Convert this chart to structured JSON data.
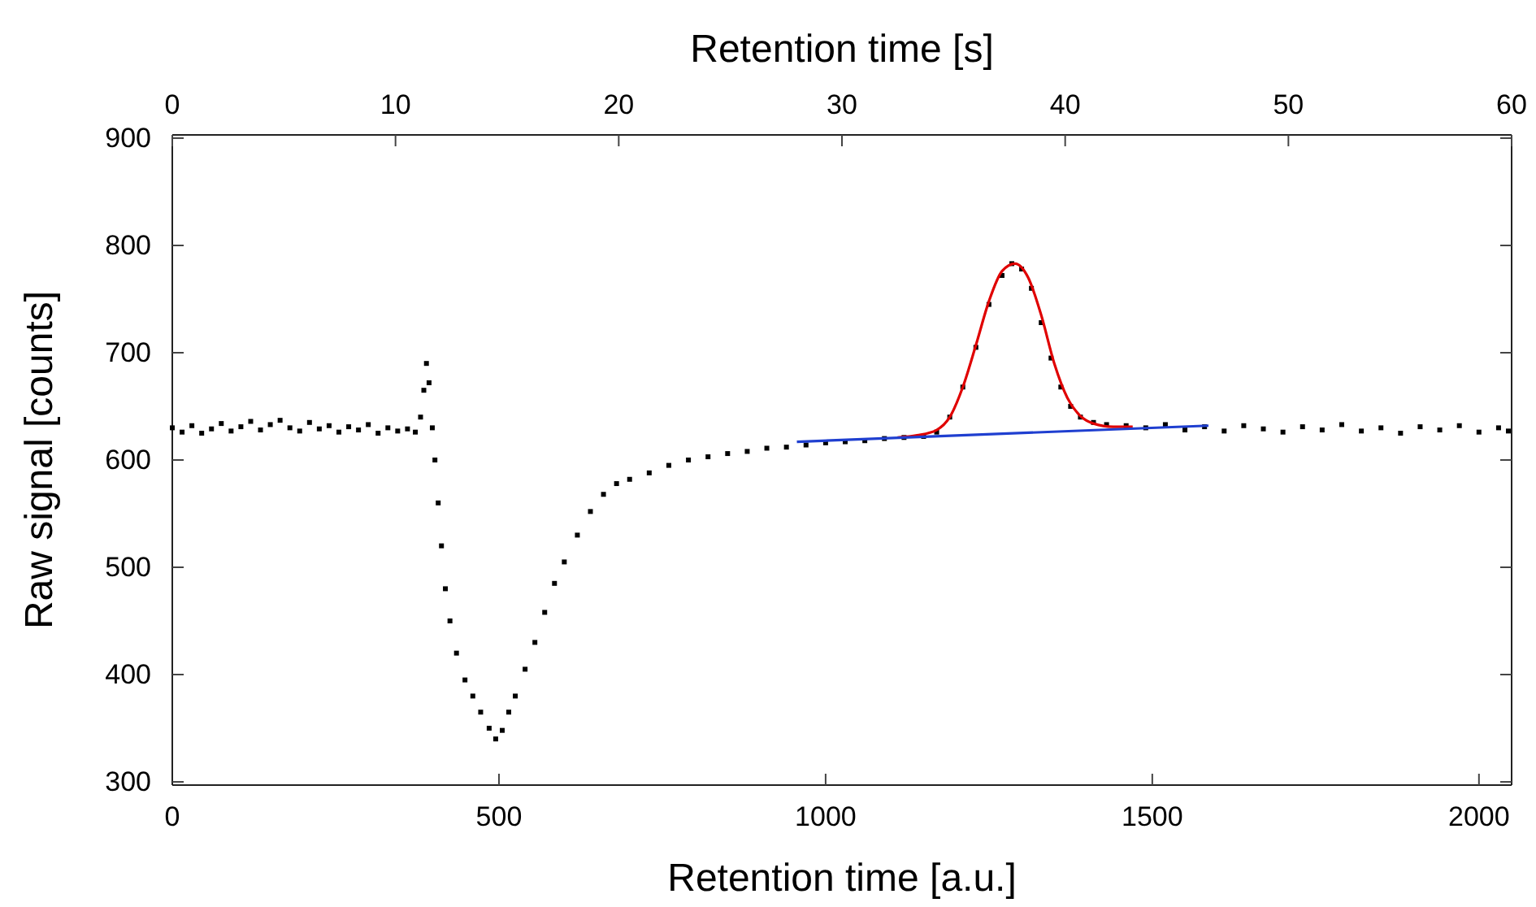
{
  "chart_data": {
    "type": "scatter",
    "xlabel": "Retention time [a.u.]",
    "ylabel": "Raw signal [counts]",
    "x2label": "Retention time [s]",
    "xlim": [
      0,
      2050
    ],
    "xticks": [
      0,
      500,
      1000,
      1500,
      2000
    ],
    "x2lim": [
      0,
      60
    ],
    "x2ticks": [
      0,
      10,
      20,
      30,
      40,
      50,
      60
    ],
    "ylim": [
      297,
      903
    ],
    "yticks": [
      300,
      400,
      500,
      600,
      700,
      800,
      900
    ],
    "grid": false,
    "series": [
      {
        "marker": "square",
        "color": "#000000",
        "x": [
          0,
          15,
          30,
          45,
          60,
          75,
          90,
          105,
          120,
          135,
          150,
          165,
          180,
          195,
          210,
          225,
          240,
          255,
          270,
          285,
          300,
          315,
          330,
          345,
          360,
          372,
          380,
          385,
          389,
          393,
          398,
          402,
          407,
          412,
          418,
          425,
          435,
          448,
          460,
          472,
          485,
          495,
          505,
          515,
          525,
          540,
          555,
          570,
          585,
          600,
          620,
          640,
          660,
          680,
          700,
          730,
          760,
          790,
          820,
          850,
          880,
          910,
          940,
          970,
          1000,
          1030,
          1060,
          1090,
          1120,
          1150,
          1170,
          1190,
          1210,
          1230,
          1250,
          1270,
          1285,
          1300,
          1315,
          1330,
          1345,
          1360,
          1375,
          1390,
          1410,
          1430,
          1460,
          1490,
          1520,
          1550,
          1580,
          1610,
          1640,
          1670,
          1700,
          1730,
          1760,
          1790,
          1820,
          1850,
          1880,
          1910,
          1940,
          1970,
          2000,
          2030,
          2045
        ],
        "values": [
          630,
          626,
          632,
          625,
          629,
          634,
          627,
          631,
          636,
          628,
          633,
          637,
          630,
          627,
          635,
          629,
          632,
          626,
          631,
          628,
          633,
          625,
          630,
          627,
          629,
          626,
          640,
          665,
          690,
          672,
          630,
          600,
          560,
          520,
          480,
          450,
          420,
          395,
          380,
          365,
          350,
          340,
          348,
          365,
          380,
          405,
          430,
          458,
          485,
          505,
          530,
          552,
          568,
          578,
          582,
          588,
          595,
          600,
          603,
          606,
          608,
          611,
          612,
          614,
          616,
          617,
          618,
          620,
          621,
          622,
          626,
          640,
          668,
          705,
          745,
          772,
          783,
          778,
          760,
          728,
          695,
          668,
          650,
          640,
          635,
          633,
          632,
          630,
          633,
          628,
          631,
          627,
          632,
          629,
          626,
          631,
          628,
          633,
          627,
          630,
          625,
          631,
          628,
          632,
          626,
          630,
          627
        ]
      },
      {
        "type": "line",
        "marker": "none",
        "color": "#e00000",
        "x": [
          1110,
          1140,
          1170,
          1190,
          1210,
          1230,
          1250,
          1270,
          1290,
          1310,
          1330,
          1350,
          1370,
          1390,
          1410,
          1440,
          1470
        ],
        "values": [
          621,
          623,
          628,
          640,
          668,
          707,
          748,
          776,
          783,
          770,
          735,
          690,
          658,
          641,
          634,
          631,
          631
        ]
      },
      {
        "type": "line",
        "marker": "none",
        "color": "#1f3fd0",
        "x": [
          956,
          1586
        ],
        "values": [
          617,
          632
        ]
      }
    ]
  }
}
